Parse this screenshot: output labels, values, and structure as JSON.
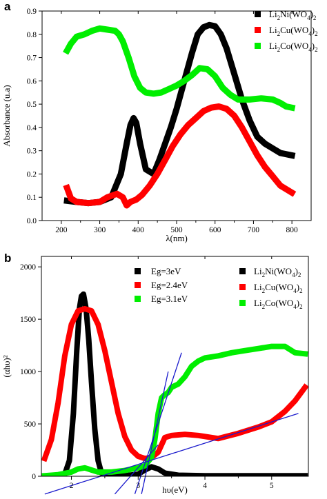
{
  "chart_data": [
    {
      "panel": "a",
      "type": "line",
      "xlabel": "λ(nm)",
      "ylabel": "Absorbance (u.a)",
      "xlim": [
        150,
        850
      ],
      "ylim": [
        0.0,
        0.9
      ],
      "xticks": [
        "200",
        "300",
        "400",
        "500",
        "600",
        "700",
        "800"
      ],
      "yticks": [
        "0.0",
        "0.1",
        "0.2",
        "0.3",
        "0.4",
        "0.5",
        "0.6",
        "0.7",
        "0.8",
        "0.9"
      ],
      "legend_position": "top-right",
      "series": [
        {
          "name": "Li2Ni(WO4)2",
          "color": "#000000",
          "x": [
            215,
            240,
            270,
            300,
            330,
            355,
            370,
            380,
            388,
            395,
            405,
            420,
            440,
            455,
            470,
            485,
            500,
            520,
            540,
            555,
            570,
            585,
            600,
            615,
            630,
            650,
            670,
            690,
            710,
            730,
            750,
            770,
            800
          ],
          "y": [
            0.085,
            0.08,
            0.075,
            0.08,
            0.1,
            0.2,
            0.33,
            0.41,
            0.44,
            0.42,
            0.33,
            0.22,
            0.2,
            0.26,
            0.33,
            0.4,
            0.48,
            0.6,
            0.72,
            0.8,
            0.83,
            0.84,
            0.835,
            0.8,
            0.74,
            0.63,
            0.52,
            0.43,
            0.36,
            0.33,
            0.31,
            0.29,
            0.28
          ]
        },
        {
          "name": "Li2Cu(WO4)2",
          "color": "#ff0000",
          "x": [
            215,
            225,
            240,
            270,
            300,
            320,
            345,
            360,
            370,
            380,
            395,
            410,
            430,
            450,
            470,
            490,
            510,
            530,
            550,
            570,
            590,
            610,
            630,
            650,
            670,
            690,
            710,
            730,
            750,
            770,
            800
          ],
          "y": [
            0.14,
            0.095,
            0.08,
            0.075,
            0.08,
            0.1,
            0.115,
            0.1,
            0.065,
            0.08,
            0.09,
            0.11,
            0.15,
            0.2,
            0.26,
            0.32,
            0.37,
            0.41,
            0.44,
            0.47,
            0.485,
            0.49,
            0.48,
            0.45,
            0.4,
            0.34,
            0.28,
            0.23,
            0.19,
            0.15,
            0.12
          ]
        },
        {
          "name": "Li2Co(WO4)2",
          "color": "#00ee00",
          "x": [
            215,
            225,
            240,
            260,
            280,
            300,
            320,
            340,
            350,
            360,
            375,
            390,
            405,
            420,
            440,
            460,
            480,
            500,
            520,
            540,
            560,
            580,
            600,
            620,
            640,
            660,
            690,
            720,
            750,
            770,
            785,
            800
          ],
          "y": [
            0.73,
            0.76,
            0.79,
            0.8,
            0.815,
            0.825,
            0.82,
            0.815,
            0.8,
            0.77,
            0.7,
            0.62,
            0.57,
            0.55,
            0.545,
            0.55,
            0.565,
            0.58,
            0.6,
            0.625,
            0.655,
            0.65,
            0.62,
            0.57,
            0.54,
            0.52,
            0.52,
            0.525,
            0.52,
            0.505,
            0.49,
            0.485
          ]
        }
      ]
    },
    {
      "panel": "b",
      "type": "line",
      "xlabel": "hυ(eV)",
      "ylabel": "(αhυ)²",
      "xlim": [
        1.55,
        5.55
      ],
      "ylim": [
        0,
        2100
      ],
      "xticks": [
        "2",
        "3",
        "4",
        "5"
      ],
      "yticks": [
        "0",
        "500",
        "1000",
        "1500",
        "2000"
      ],
      "legend_position": "top",
      "band_gaps": [
        {
          "label": "Eg=3eV",
          "color": "#000000"
        },
        {
          "label": "Eg=2.4eV",
          "color": "#ff0000"
        },
        {
          "label": "Eg=3.1eV",
          "color": "#00ee00"
        }
      ],
      "series": [
        {
          "name": "Li2Ni(WO4)2",
          "color": "#000000",
          "x": [
            1.6,
            1.8,
            1.9,
            1.97,
            2.03,
            2.08,
            2.12,
            2.15,
            2.18,
            2.22,
            2.26,
            2.3,
            2.35,
            2.4,
            2.45,
            2.6,
            2.8,
            3.0,
            3.1,
            3.2,
            3.3,
            3.4,
            3.6,
            4.0,
            4.5,
            5.0,
            5.5
          ],
          "y": [
            0,
            0,
            20,
            150,
            600,
            1200,
            1600,
            1720,
            1740,
            1600,
            1300,
            900,
            450,
            150,
            30,
            5,
            5,
            20,
            60,
            90,
            70,
            30,
            10,
            5,
            5,
            5,
            5
          ]
        },
        {
          "name": "Li2Cu(WO4)2",
          "color": "#ff0000",
          "x": [
            1.6,
            1.7,
            1.8,
            1.9,
            2.0,
            2.1,
            2.2,
            2.3,
            2.4,
            2.5,
            2.6,
            2.7,
            2.8,
            2.9,
            3.0,
            3.1,
            3.2,
            3.3,
            3.4,
            3.5,
            3.7,
            3.9,
            4.0,
            4.2,
            4.5,
            4.8,
            5.0,
            5.2,
            5.35,
            5.5
          ],
          "y": [
            170,
            350,
            700,
            1150,
            1450,
            1580,
            1600,
            1580,
            1450,
            1200,
            900,
            600,
            380,
            250,
            190,
            170,
            180,
            230,
            370,
            390,
            400,
            390,
            380,
            360,
            410,
            470,
            520,
            620,
            720,
            850
          ]
        },
        {
          "name": "Li2Co(WO4)2",
          "color": "#00ee00",
          "x": [
            1.6,
            1.8,
            2.0,
            2.1,
            2.2,
            2.3,
            2.4,
            2.6,
            2.8,
            3.0,
            3.1,
            3.2,
            3.25,
            3.3,
            3.35,
            3.4,
            3.45,
            3.5,
            3.6,
            3.7,
            3.8,
            3.9,
            4.0,
            4.2,
            4.4,
            4.6,
            4.8,
            5.0,
            5.2,
            5.35,
            5.5
          ],
          "y": [
            5,
            15,
            40,
            70,
            80,
            60,
            40,
            40,
            55,
            80,
            100,
            180,
            350,
            600,
            750,
            780,
            800,
            850,
            880,
            950,
            1050,
            1100,
            1130,
            1150,
            1180,
            1200,
            1220,
            1240,
            1240,
            1180,
            1170
          ]
        }
      ],
      "tangent_lines": {
        "color": "#1a1acc",
        "lines": [
          {
            "x": [
              1.6,
              5.4
            ],
            "y": [
              -170,
              600
            ]
          },
          {
            "x": [
              2.95,
              3.65
            ],
            "y": [
              -170,
              1180
            ]
          },
          {
            "x": [
              2.65,
              3.3
            ],
            "y": [
              -170,
              300
            ]
          },
          {
            "x": [
              3.05,
              3.45
            ],
            "y": [
              -170,
              1000
            ]
          }
        ]
      }
    }
  ]
}
